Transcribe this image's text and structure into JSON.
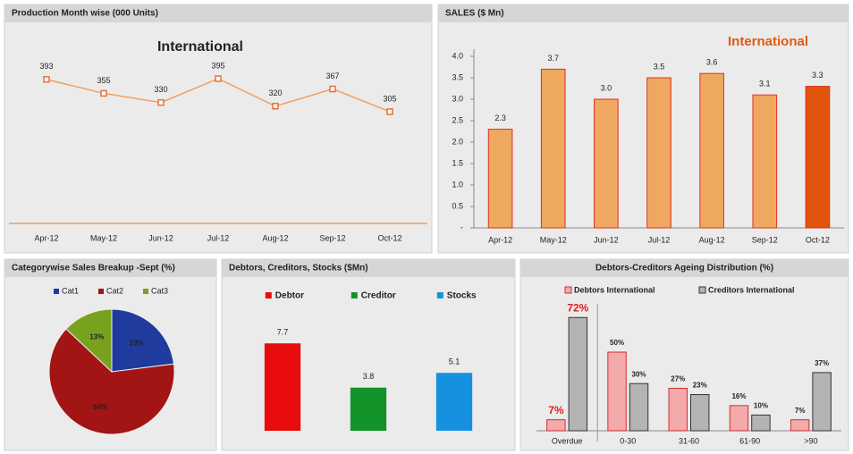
{
  "chart_data": [
    {
      "type": "line",
      "title": "Production Month wise (000 Units)",
      "subtitle": "International",
      "categories": [
        "Apr-12",
        "May-12",
        "Jun-12",
        "Jul-12",
        "Aug-12",
        "Sep-12",
        "Oct-12"
      ],
      "values": [
        393,
        355,
        330,
        395,
        320,
        367,
        305
      ],
      "color": "#f0a060",
      "ylim": [
        0,
        500
      ]
    },
    {
      "type": "bar",
      "title": "SALES ($ Mn)",
      "subtitle": "International",
      "categories": [
        "Apr-12",
        "May-12",
        "Jun-12",
        "Jul-12",
        "Aug-12",
        "Sep-12",
        "Oct-12"
      ],
      "values": [
        2.3,
        3.7,
        3.0,
        3.5,
        3.6,
        3.1,
        3.3
      ],
      "value_labels": [
        "2.3",
        "3.7",
        "3.0",
        "3.5",
        "3.6",
        "3.1",
        "3.3"
      ],
      "colors": [
        "#eea860",
        "#eea860",
        "#eea860",
        "#eea860",
        "#eea860",
        "#eea860",
        "#e0540c"
      ],
      "ylim": [
        0,
        4
      ],
      "yticks": [
        {
          "value": 0,
          "label": "-"
        },
        0.5,
        {
          "value": 1,
          "label": "1.0"
        },
        1.5,
        {
          "value": 2,
          "label": "2.0"
        },
        2.5,
        {
          "value": 3,
          "label": "3.0"
        },
        3.5,
        {
          "value": 4,
          "label": "4.0"
        }
      ]
    },
    {
      "type": "pie",
      "title": "Categorywise Sales Breakup -Sept (%)",
      "categories": [
        "Cat1",
        "Cat2",
        "Cat3"
      ],
      "values": [
        23,
        64,
        13
      ],
      "value_labels": [
        "23%",
        "64%",
        "13%"
      ],
      "colors": [
        "#1f3b9e",
        "#a31414",
        "#78a21e"
      ]
    },
    {
      "type": "bar",
      "title": "Debtors, Creditors, Stocks ($Mn)",
      "categories": [
        "Debtor",
        "Creditor",
        "Stocks"
      ],
      "values": [
        7.7,
        3.8,
        5.1
      ],
      "colors": [
        "#e80c0c",
        "#12932a",
        "#1591e0"
      ],
      "ylim": [
        0,
        10
      ]
    },
    {
      "type": "grouped_bar",
      "title": "Debtors-Creditors Ageing Distribution (%)",
      "categories": [
        "Overdue",
        "0-30",
        "31-60",
        "61-90",
        ">90"
      ],
      "ylim": [
        0,
        75
      ],
      "series": [
        {
          "name": "Debtors International",
          "color": "#f2aaaa",
          "values": [
            7,
            50,
            27,
            16,
            7
          ],
          "value_labels": [
            "7%",
            "50%",
            "27%",
            "16%",
            "7%"
          ]
        },
        {
          "name": "Creditors International",
          "color": "#b4b4b4",
          "values": [
            72,
            30,
            23,
            10,
            37
          ],
          "value_labels": [
            "72%",
            "30%",
            "23%",
            "10%",
            "37%"
          ]
        }
      ]
    }
  ]
}
